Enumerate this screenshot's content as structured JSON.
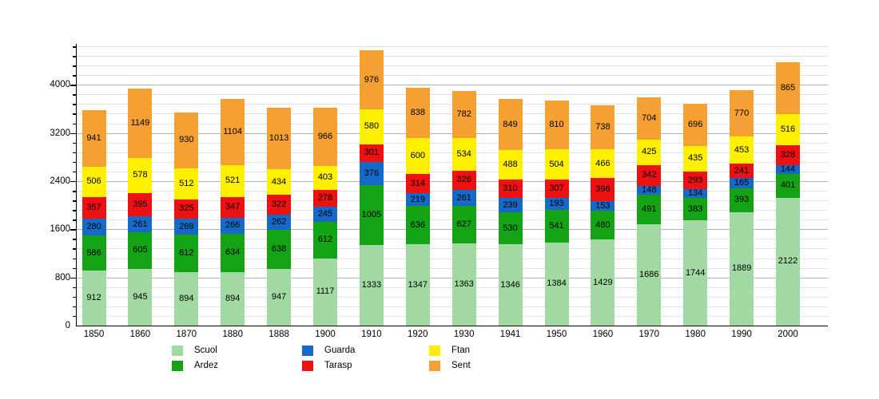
{
  "chart_data": {
    "type": "bar",
    "stacked": true,
    "title": "",
    "xlabel": "",
    "ylabel": "",
    "categories": [
      "1850",
      "1860",
      "1870",
      "1880",
      "1888",
      "1900",
      "1910",
      "1920",
      "1930",
      "1941",
      "1950",
      "1960",
      "1970",
      "1980",
      "1990",
      "2000"
    ],
    "series": [
      {
        "name": "Scuol",
        "color": "#a2d9a2",
        "values": [
          912,
          945,
          894,
          894,
          947,
          1117,
          1333,
          1347,
          1363,
          1346,
          1384,
          1429,
          1686,
          1744,
          1889,
          2122
        ]
      },
      {
        "name": "Ardez",
        "color": "#14a314",
        "values": [
          586,
          605,
          612,
          634,
          638,
          612,
          1005,
          636,
          627,
          530,
          541,
          480,
          491,
          383,
          393,
          401
        ]
      },
      {
        "name": "Guarda",
        "color": "#1569c7",
        "values": [
          280,
          261,
          269,
          266,
          262,
          245,
          376,
          219,
          261,
          239,
          193,
          153,
          148,
          134,
          165,
          144
        ]
      },
      {
        "name": "Tarasp",
        "color": "#ee1111",
        "values": [
          357,
          395,
          325,
          347,
          322,
          278,
          301,
          314,
          326,
          310,
          307,
          396,
          342,
          293,
          241,
          328
        ]
      },
      {
        "name": "Ftan",
        "color": "#fff000",
        "values": [
          506,
          578,
          512,
          521,
          434,
          403,
          580,
          600,
          534,
          488,
          504,
          466,
          425,
          435,
          453,
          516
        ]
      },
      {
        "name": "Sent",
        "color": "#f5a032",
        "values": [
          941,
          1149,
          930,
          1104,
          1013,
          966,
          976,
          838,
          782,
          849,
          810,
          738,
          704,
          696,
          770,
          865
        ]
      }
    ],
    "ylim": [
      0,
      4680
    ],
    "yticks": [
      0,
      800,
      1600,
      2400,
      3200,
      4000
    ],
    "minor_grid_step": 160,
    "major_grid_step": 800,
    "grid": true,
    "value_labels": true,
    "label_color": "#000000",
    "legend_position": "bottom",
    "legend_columns": [
      [
        "Scuol",
        "Ardez"
      ],
      [
        "Guarda",
        "Tarasp"
      ],
      [
        "Ftan",
        "Sent"
      ]
    ]
  }
}
